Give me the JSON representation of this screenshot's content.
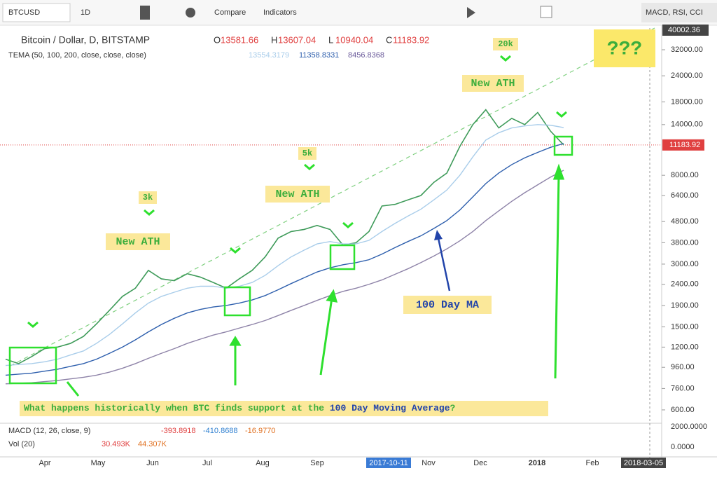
{
  "toolbar": {
    "symbol": "BTCUSD",
    "interval": "1D",
    "compare": "Compare",
    "indicators": "Indicators",
    "template": "MACD, RSI, CCI"
  },
  "legend": {
    "title": "Bitcoin / Dollar, D, BITSTAMP",
    "ohlc": [
      {
        "label": "O",
        "value": "13581.66"
      },
      {
        "label": "H",
        "value": "13607.04"
      },
      {
        "label": "L",
        "value": "10940.04"
      },
      {
        "label": "C",
        "value": "11183.92"
      }
    ],
    "tema": "TEMA (50, 100, 200, close, close, close)",
    "tema_values": [
      "13554.3179",
      "11358.8331",
      "8456.8368"
    ]
  },
  "chart_data": {
    "type": "line",
    "log_scale": true,
    "ylim": [
      534,
      40670
    ],
    "yticks": [
      {
        "value": 32000,
        "label": "32000.00"
      },
      {
        "value": 24000,
        "label": "24000.00"
      },
      {
        "value": 18000,
        "label": "18000.00"
      },
      {
        "value": 14000,
        "label": "14000.00"
      },
      {
        "value": 8000,
        "label": "8000.00"
      },
      {
        "value": 6400,
        "label": "6400.00"
      },
      {
        "value": 4800,
        "label": "4800.00"
      },
      {
        "value": 3800,
        "label": "3800.00"
      },
      {
        "value": 3000,
        "label": "3000.00"
      },
      {
        "value": 2400,
        "label": "2400.00"
      },
      {
        "value": 1900,
        "label": "1900.00"
      },
      {
        "value": 1500,
        "label": "1500.00"
      },
      {
        "value": 1200,
        "label": "1200.00"
      },
      {
        "value": 960,
        "label": "960.00"
      },
      {
        "value": 760,
        "label": "760.00"
      },
      {
        "value": 600,
        "label": "600.00"
      }
    ],
    "crosshair_price": 40002.36,
    "last_price": 11183.92,
    "last_color": "#e04040",
    "series": [
      {
        "name": "BTCUSD",
        "color": "#3f9b5a",
        "values": [
          1050,
          1000,
          1080,
          1180,
          1200,
          1250,
          1350,
          1550,
          1800,
          2100,
          2300,
          2800,
          2550,
          2500,
          2700,
          2600,
          2450,
          2300,
          2550,
          2800,
          3250,
          4000,
          4300,
          4400,
          4600,
          4400,
          3700,
          3800,
          4300,
          5700,
          5800,
          6100,
          6400,
          7400,
          8200,
          11000,
          14000,
          16500,
          13500,
          15000,
          14000,
          16000,
          13000,
          11183.92
        ]
      },
      {
        "name": "TEMA 50",
        "color": "#a9cdea",
        "values": [
          980,
          990,
          1000,
          1020,
          1050,
          1100,
          1150,
          1250,
          1380,
          1550,
          1750,
          1950,
          2100,
          2200,
          2300,
          2350,
          2350,
          2300,
          2350,
          2450,
          2650,
          2950,
          3250,
          3500,
          3750,
          3850,
          3750,
          3750,
          3900,
          4300,
          4700,
          5100,
          5500,
          6100,
          6800,
          8000,
          9800,
          11800,
          12800,
          13500,
          13800,
          14000,
          13900,
          13554
        ]
      },
      {
        "name": "TEMA 100",
        "color": "#2e5fad",
        "values": [
          880,
          890,
          900,
          920,
          940,
          970,
          1000,
          1050,
          1120,
          1200,
          1300,
          1420,
          1540,
          1650,
          1750,
          1820,
          1870,
          1900,
          1950,
          2020,
          2120,
          2260,
          2420,
          2580,
          2750,
          2880,
          2980,
          3050,
          3150,
          3350,
          3600,
          3850,
          4100,
          4450,
          4850,
          5450,
          6300,
          7300,
          8200,
          9000,
          9700,
          10300,
          10900,
          11358
        ]
      },
      {
        "name": "TEMA 200",
        "color": "#8e83a8",
        "values": [
          800,
          805,
          810,
          820,
          830,
          845,
          860,
          880,
          910,
          950,
          1000,
          1060,
          1120,
          1180,
          1250,
          1310,
          1370,
          1420,
          1480,
          1540,
          1610,
          1700,
          1800,
          1900,
          2010,
          2120,
          2220,
          2300,
          2400,
          2520,
          2680,
          2850,
          3050,
          3280,
          3550,
          3880,
          4300,
          4850,
          5400,
          6000,
          6600,
          7200,
          7850,
          8456
        ]
      }
    ]
  },
  "x_axis": [
    "Apr",
    "May",
    "Jun",
    "Jul",
    "Aug",
    "Sep",
    "2017-10-11",
    "Nov",
    "Dec",
    "2018",
    "Feb",
    "2018-03-05"
  ],
  "annotations": {
    "ath": [
      "New ATH",
      "New ATH",
      "New ATH"
    ],
    "targets": [
      "3k",
      "5k",
      "20k"
    ],
    "mystery": "???",
    "ma_label": "100 Day MA",
    "question": [
      "What happens historically when BTC finds support at the ",
      "100 Day Moving Average",
      "?"
    ]
  },
  "macd": {
    "title": "MACD (12, 26, close, 9)",
    "values": [
      "-393.8918",
      "-410.8688",
      "-16.9770"
    ],
    "vol": "Vol (20)",
    "vol_values": [
      "30.493K",
      "44.307K"
    ],
    "ticks": [
      "2000.0000",
      "0.0000"
    ]
  }
}
